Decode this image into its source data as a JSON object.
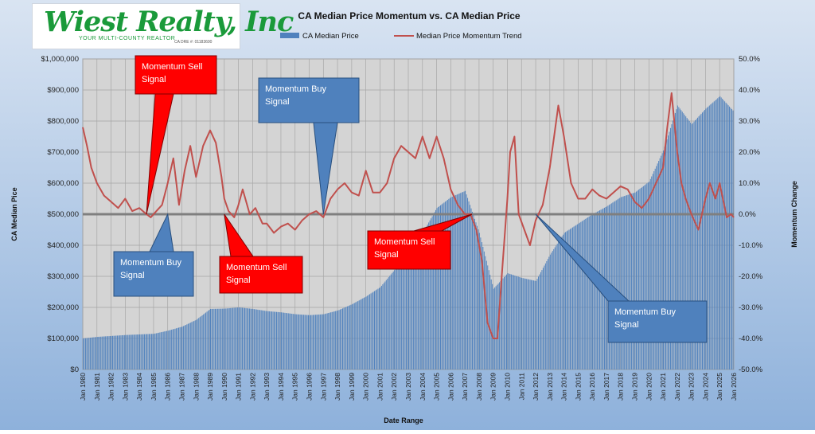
{
  "logo": {
    "name": "Wiest Realty, Inc",
    "tagline": "YOUR MULTI-COUNTY REALTOR",
    "license": "CA DRE #: 01183600"
  },
  "chart_data": {
    "type": "bar+line",
    "title": "CA Median Price Momentum vs. CA Median Price",
    "xlabel": "Date Range",
    "ylabel_left": "CA Median  Pice",
    "ylabel_right": "Momentum Change",
    "legend": [
      {
        "name": "CA Median Price",
        "kind": "bar",
        "color": "#4f81bd"
      },
      {
        "name": "Median Price Momentum Trend",
        "kind": "line",
        "color": "#c0504d"
      }
    ],
    "legend_position": "top",
    "left_axis": {
      "min": 0,
      "max": 1000000,
      "ticks": [
        "$0",
        "$100,000",
        "$200,000",
        "$300,000",
        "$400,000",
        "$500,000",
        "$600,000",
        "$700,000",
        "$800,000",
        "$900,000",
        "$1,000,000"
      ]
    },
    "right_axis": {
      "min": -50,
      "max": 50,
      "ticks": [
        "-50.0%",
        "-40.0%",
        "-30.0%",
        "-20.0%",
        "-10.0%",
        "0.0%",
        "10.0%",
        "20.0%",
        "30.0%",
        "40.0%",
        "50.0%"
      ]
    },
    "x_range": [
      1980.0,
      2026.0
    ],
    "x_ticks": [
      "Jan 1980",
      "Jan 1981",
      "Jan 1982",
      "Jan 1983",
      "Jan 1984",
      "Jan 1985",
      "Jan 1986",
      "Jan 1987",
      "Jan 1988",
      "Jan 1989",
      "Jan 1990",
      "Jan 1991",
      "Jan 1992",
      "Jan 1993",
      "Jan 1994",
      "Jan 1995",
      "Jan 1996",
      "Jan 1997",
      "Jan 1998",
      "Jan 1999",
      "Jan 2000",
      "Jan 2001",
      "Jan 2002",
      "Jan 2003",
      "Jan 2004",
      "Jan 2005",
      "Jan 2006",
      "Jan 2007",
      "Jan 2008",
      "Jan 2009",
      "Jan 2010",
      "Jan 2011",
      "Jan 2012",
      "Jan 2013",
      "Jan 2014",
      "Jan 2015",
      "Jan 2016",
      "Jan 2017",
      "Jan 2018",
      "Jan 2019",
      "Jan 2020",
      "Jan 2021",
      "Jan 2022",
      "Jan 2023",
      "Jan 2024",
      "Jan 2025",
      "Jan 2026"
    ],
    "median_price": {
      "name": "CA Median Price",
      "x": [
        1980,
        1981,
        1982,
        1983,
        1984,
        1985,
        1986,
        1987,
        1988,
        1989,
        1990,
        1991,
        1992,
        1993,
        1994,
        1995,
        1996,
        1997,
        1998,
        1999,
        2000,
        2001,
        2002,
        2003,
        2004,
        2005,
        2006,
        2007,
        2008,
        2009,
        2010,
        2011,
        2012,
        2013,
        2014,
        2015,
        2016,
        2017,
        2018,
        2019,
        2020,
        2021,
        2022,
        2023,
        2024,
        2025,
        2026
      ],
      "values": [
        100000,
        105000,
        108000,
        111000,
        113000,
        115000,
        125000,
        138000,
        160000,
        195000,
        196000,
        200000,
        195000,
        188000,
        184000,
        178000,
        175000,
        178000,
        190000,
        210000,
        235000,
        265000,
        320000,
        380000,
        440000,
        520000,
        555000,
        575000,
        440000,
        260000,
        310000,
        295000,
        285000,
        370000,
        440000,
        470000,
        500000,
        525000,
        555000,
        570000,
        605000,
        705000,
        850000,
        790000,
        840000,
        880000,
        830000
      ]
    },
    "momentum": {
      "name": "Median Price Momentum Trend",
      "unit": "%",
      "x": [
        1980.0,
        1980.3,
        1980.6,
        1981.0,
        1981.5,
        1982.0,
        1982.5,
        1983.0,
        1983.5,
        1984.0,
        1984.5,
        1984.8,
        1985.2,
        1985.6,
        1986.0,
        1986.4,
        1986.8,
        1987.2,
        1987.6,
        1988.0,
        1988.5,
        1989.0,
        1989.4,
        1989.8,
        1990.0,
        1990.3,
        1990.7,
        1991.0,
        1991.3,
        1991.8,
        1992.2,
        1992.7,
        1993.0,
        1993.5,
        1994.0,
        1994.5,
        1995.0,
        1995.5,
        1996.0,
        1996.5,
        1997.0,
        1997.5,
        1998.0,
        1998.5,
        1999.0,
        1999.5,
        2000.0,
        2000.5,
        2001.0,
        2001.5,
        2002.0,
        2002.5,
        2003.0,
        2003.5,
        2004.0,
        2004.5,
        2005.0,
        2005.5,
        2006.0,
        2006.5,
        2007.0,
        2007.4,
        2007.8,
        2008.2,
        2008.6,
        2009.0,
        2009.3,
        2009.6,
        2010.0,
        2010.2,
        2010.5,
        2010.8,
        2011.2,
        2011.6,
        2012.0,
        2012.5,
        2013.0,
        2013.3,
        2013.6,
        2014.0,
        2014.5,
        2015.0,
        2015.5,
        2016.0,
        2016.5,
        2017.0,
        2017.5,
        2018.0,
        2018.5,
        2019.0,
        2019.5,
        2020.0,
        2020.5,
        2021.0,
        2021.3,
        2021.6,
        2022.0,
        2022.3,
        2022.6,
        2023.0,
        2023.5,
        2024.0,
        2024.3,
        2024.7,
        2025.0,
        2025.5,
        2025.8,
        2026.0
      ],
      "values": [
        28,
        22,
        15,
        10,
        6,
        4,
        2,
        5,
        1,
        2,
        0,
        -1,
        1,
        3,
        10,
        18,
        3,
        14,
        22,
        12,
        22,
        27,
        23,
        12,
        5,
        1,
        -1,
        3,
        8,
        0,
        2,
        -3,
        -3,
        -6,
        -4,
        -3,
        -5,
        -2,
        0,
        1,
        -1,
        5,
        8,
        10,
        7,
        6,
        14,
        7,
        7,
        10,
        18,
        22,
        20,
        18,
        25,
        18,
        25,
        18,
        8,
        3,
        0,
        0,
        -5,
        -15,
        -35,
        -40,
        -40,
        -20,
        5,
        20,
        25,
        0,
        -5,
        -10,
        -2,
        3,
        15,
        25,
        35,
        25,
        10,
        5,
        5,
        8,
        6,
        5,
        7,
        9,
        8,
        4,
        2,
        5,
        10,
        15,
        28,
        39,
        20,
        10,
        5,
        0,
        -5,
        5,
        10,
        5,
        10,
        -1,
        0,
        -1
      ]
    },
    "annotations": [
      {
        "text": "Momentum Sell Signal",
        "type": "sell",
        "x": 1984.5,
        "y": 0
      },
      {
        "text": "Momentum Buy Signal",
        "type": "buy",
        "x": 1986.0,
        "y": 0
      },
      {
        "text": "Momentum Sell Signal",
        "type": "sell",
        "x": 1990.0,
        "y": 0
      },
      {
        "text": "Momentum Buy Signal",
        "type": "buy",
        "x": 1997.0,
        "y": 0
      },
      {
        "text": "Momentum Sell Signal",
        "type": "sell",
        "x": 2007.5,
        "y": 0
      },
      {
        "text": "Momentum Buy Signal",
        "type": "buy",
        "x": 2012.0,
        "y": 0
      }
    ]
  }
}
